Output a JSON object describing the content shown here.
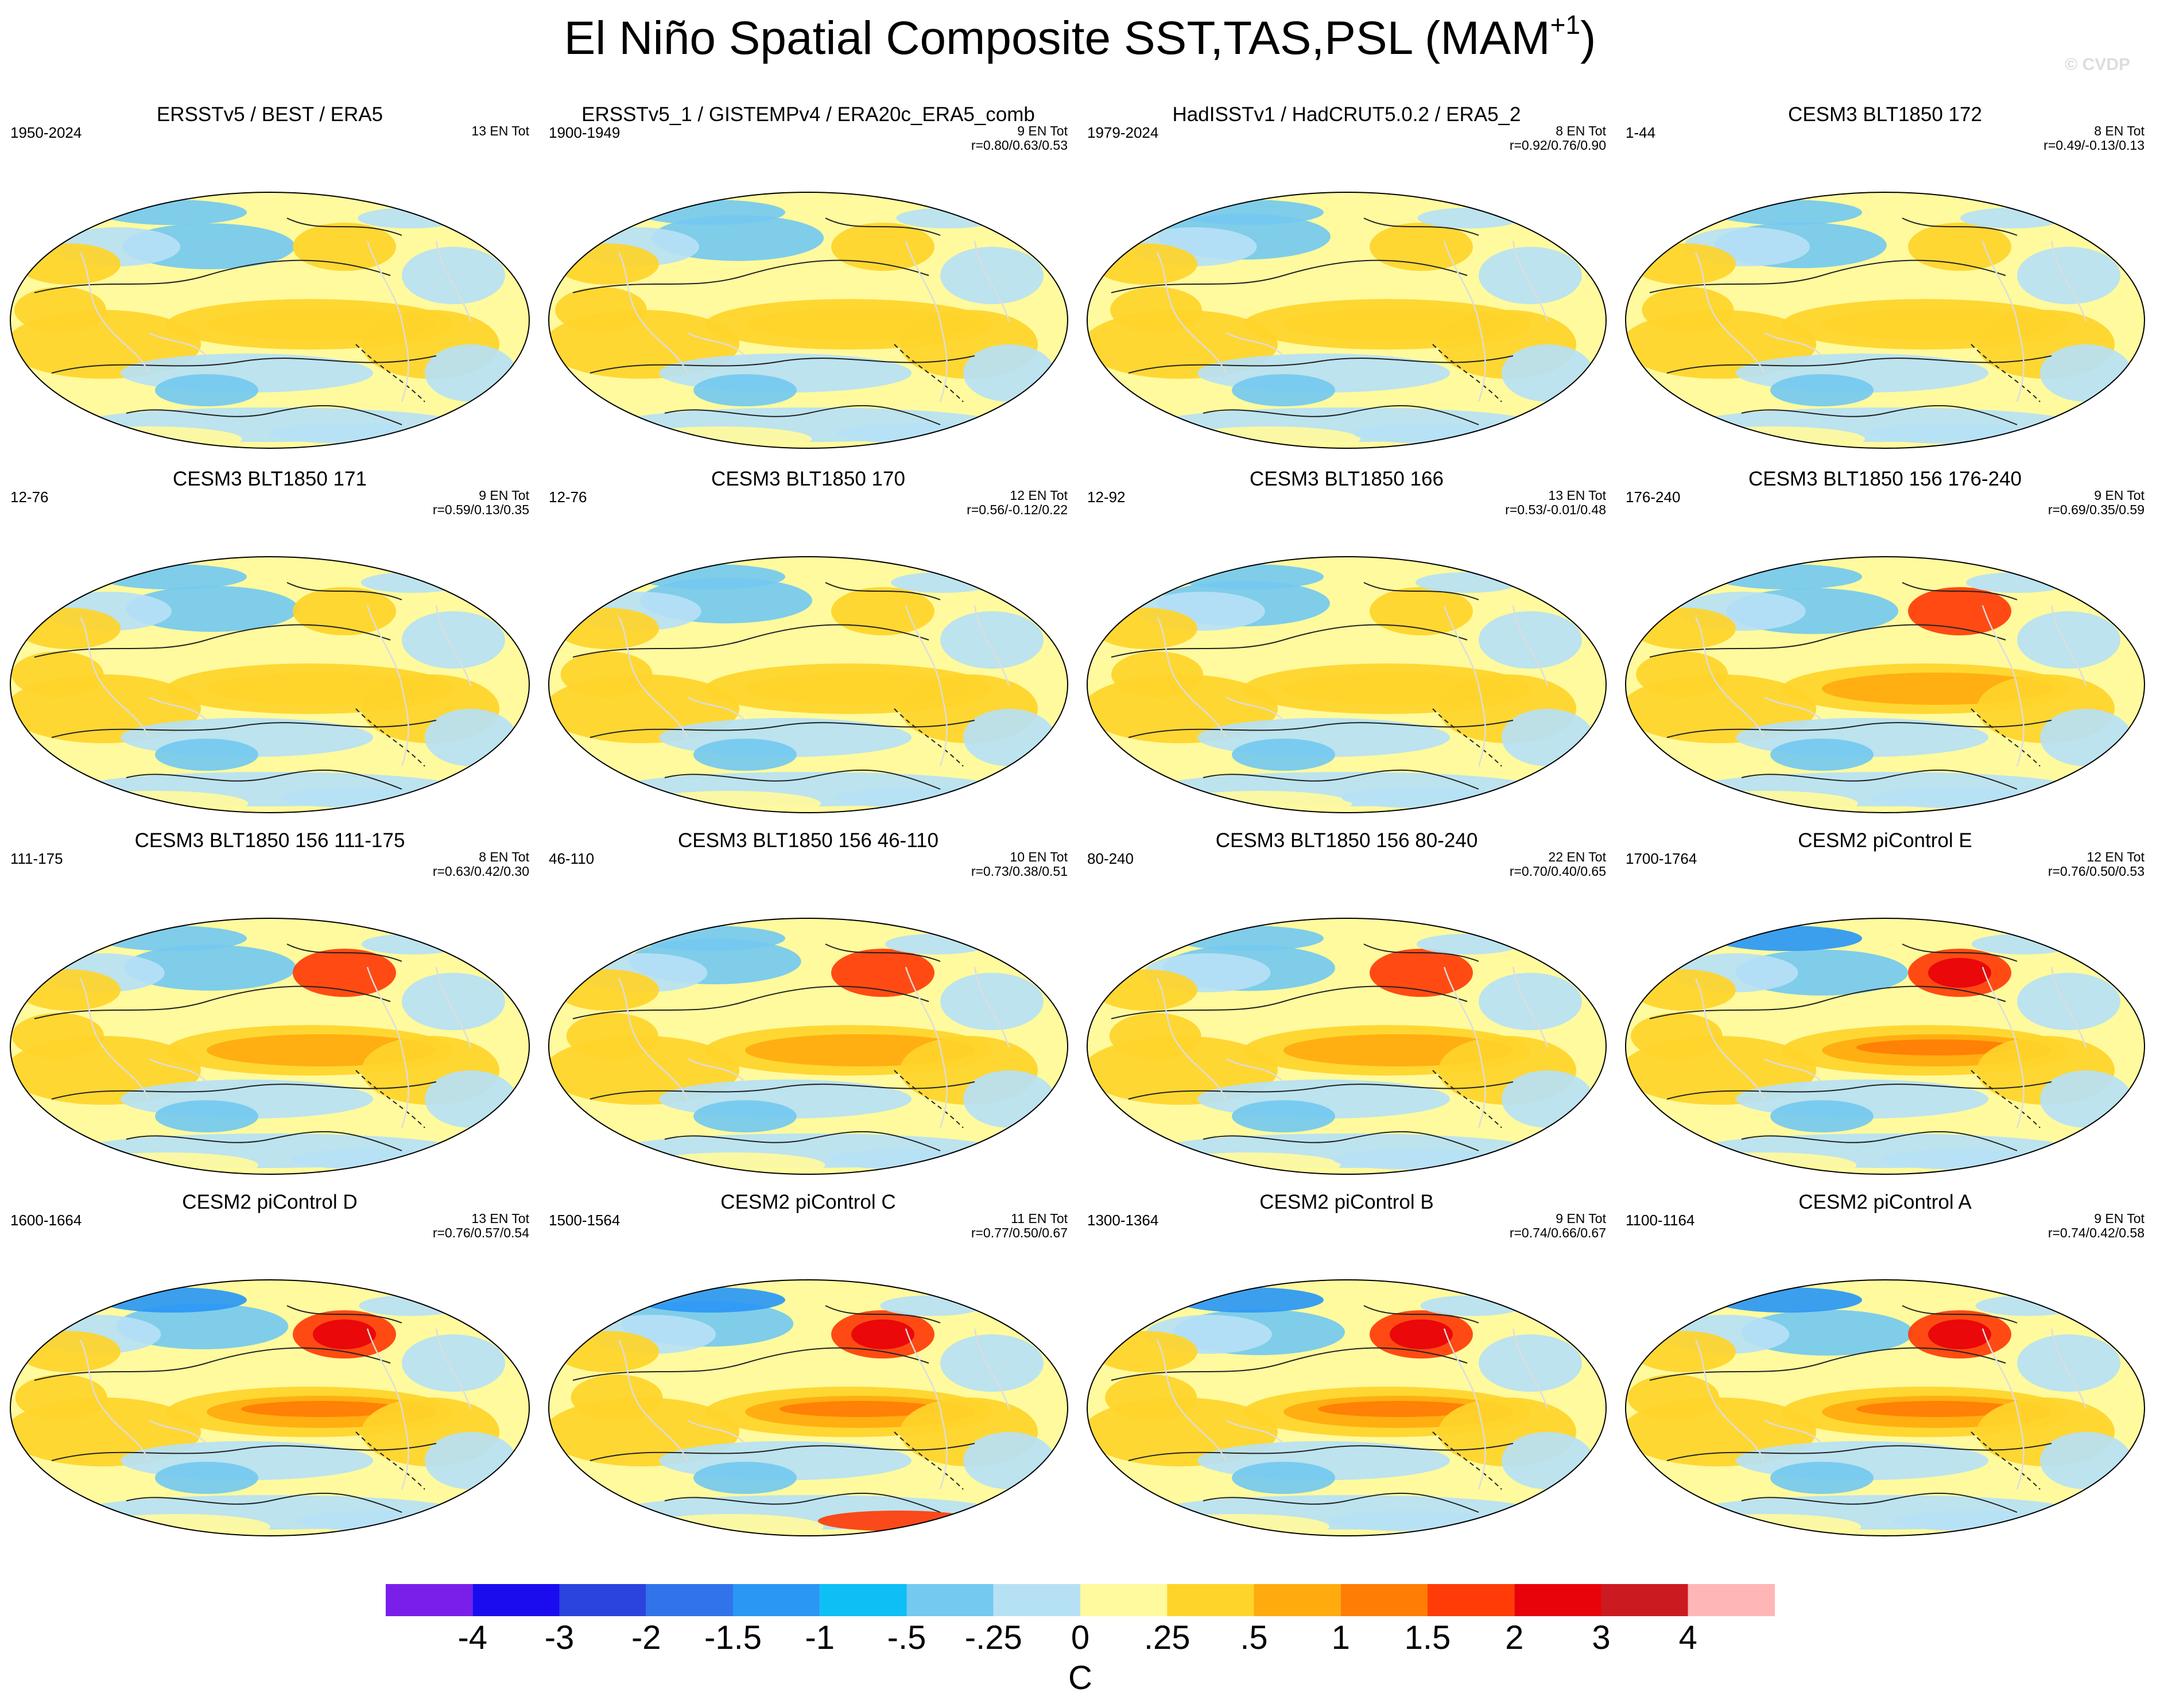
{
  "title": {
    "main": "El Niño Spatial Composite SST,TAS,PSL (MAM",
    "superscript": "+1",
    "close": ")"
  },
  "watermark": "© CVDP",
  "colorbar": {
    "unit": "C",
    "colors": [
      "#7a1fea",
      "#1b0cf0",
      "#2b44dd",
      "#3073ea",
      "#2a97f5",
      "#0dbff5",
      "#74c9f0",
      "#b6e1f5",
      "#fffa9e",
      "#ffd42a",
      "#ffab0e",
      "#ff7d04",
      "#ff3c08",
      "#e8020a",
      "#cb1a20",
      "#ffb6b6"
    ],
    "ticks": [
      "-4",
      "-3",
      "-2",
      "-1.5",
      "-1",
      "-.5",
      "-.25",
      "0",
      ".25",
      ".5",
      "1",
      "1.5",
      "2",
      "3",
      "4"
    ]
  },
  "panels": [
    {
      "title": "ERSSTv5 / BEST / ERA5",
      "period": "1950-2024",
      "count": "13 EN Tot",
      "corr": ""
    },
    {
      "title": "ERSSTv5_1 / GISTEMPv4 / ERA20c_ERA5_comb",
      "period": "1900-1949",
      "count": "9 EN Tot",
      "corr": "r=0.80/0.63/0.53"
    },
    {
      "title": "HadISSTv1 / HadCRUT5.0.2 / ERA5_2",
      "period": "1979-2024",
      "count": "8 EN Tot",
      "corr": "r=0.92/0.76/0.90"
    },
    {
      "title": "CESM3 BLT1850 172",
      "period": "1-44",
      "count": "8 EN Tot",
      "corr": "r=0.49/-0.13/0.13"
    },
    {
      "title": "CESM3 BLT1850 171",
      "period": "12-76",
      "count": "9 EN Tot",
      "corr": "r=0.59/0.13/0.35"
    },
    {
      "title": "CESM3 BLT1850 170",
      "period": "12-76",
      "count": "12 EN Tot",
      "corr": "r=0.56/-0.12/0.22"
    },
    {
      "title": "CESM3 BLT1850 166",
      "period": "12-92",
      "count": "13 EN Tot",
      "corr": "r=0.53/-0.01/0.48"
    },
    {
      "title": "CESM3 BLT1850 156 176-240",
      "period": "176-240",
      "count": "9 EN Tot",
      "corr": "r=0.69/0.35/0.59"
    },
    {
      "title": "CESM3 BLT1850 156 111-175",
      "period": "111-175",
      "count": "8 EN Tot",
      "corr": "r=0.63/0.42/0.30"
    },
    {
      "title": "CESM3 BLT1850 156 46-110",
      "period": "46-110",
      "count": "10 EN Tot",
      "corr": "r=0.73/0.38/0.51"
    },
    {
      "title": "CESM3 BLT1850 156 80-240",
      "period": "80-240",
      "count": "22 EN Tot",
      "corr": "r=0.70/0.40/0.65"
    },
    {
      "title": "CESM2 piControl E",
      "period": "1700-1764",
      "count": "12 EN Tot",
      "corr": "r=0.76/0.50/0.53"
    },
    {
      "title": "CESM2 piControl D",
      "period": "1600-1664",
      "count": "13 EN Tot",
      "corr": "r=0.76/0.57/0.54"
    },
    {
      "title": "CESM2 piControl C",
      "period": "1500-1564",
      "count": "11 EN Tot",
      "corr": "r=0.77/0.50/0.67"
    },
    {
      "title": "CESM2 piControl B",
      "period": "1300-1364",
      "count": "9 EN Tot",
      "corr": "r=0.74/0.66/0.67"
    },
    {
      "title": "CESM2 piControl A",
      "period": "1100-1164",
      "count": "9 EN Tot",
      "corr": "r=0.74/0.42/0.58"
    }
  ],
  "chart_data": {
    "type": "map-composite",
    "title": "El Niño Spatial Composite SST,TAS,PSL (MAM+1)",
    "colorbar_levels": [
      -4,
      -3,
      -2,
      -1.5,
      -1,
      -0.5,
      -0.25,
      0,
      0.25,
      0.5,
      1,
      1.5,
      2,
      3,
      4
    ],
    "unit": "C",
    "panel_intensity": [
      0.55,
      0.5,
      0.6,
      0.45,
      0.6,
      0.6,
      0.65,
      0.8,
      0.8,
      0.75,
      0.75,
      1.0,
      1.0,
      1.0,
      1.0,
      0.95
    ]
  }
}
